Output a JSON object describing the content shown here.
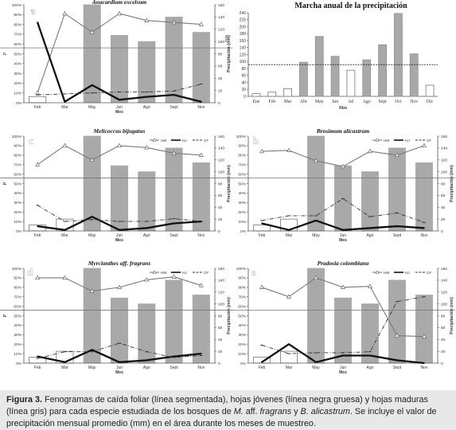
{
  "figure": {
    "months": [
      "Feb",
      "Mar",
      "May",
      "Jun",
      "Ago",
      "Sept",
      "Nov"
    ],
    "x_label": "Mes",
    "left_ticks": [
      "0%",
      "10%",
      "20%",
      "30%",
      "40%",
      "50%",
      "60%",
      "70%",
      "80%",
      "90%",
      "100%"
    ],
    "left_axis_label": "P",
    "right_axis_label": "Precipitación (mm)",
    "right_ticks": [
      "0",
      "20",
      "40",
      "60",
      "80",
      "100",
      "120",
      "140",
      "160"
    ],
    "legend_labels": [
      "HM",
      "HJ",
      "CF"
    ]
  },
  "chart_data": [
    {
      "type": "line",
      "panel_letter": "a",
      "title": "Anacardium excelsum",
      "categories": [
        "Feb",
        "Mar",
        "May",
        "Jun",
        "Ago",
        "Sept",
        "Nov"
      ],
      "precipitation_bars": [
        10,
        0,
        160,
        110,
        100,
        140,
        115
      ],
      "series": [
        {
          "name": "HM",
          "values": [
            10,
            91,
            72,
            91,
            84,
            82,
            80
          ]
        },
        {
          "name": "HJ",
          "values": [
            82,
            1,
            18,
            3,
            6,
            8,
            1
          ]
        },
        {
          "name": "CF",
          "values": [
            8,
            9,
            10,
            11,
            11,
            12,
            19
          ]
        }
      ],
      "ylim": [
        0,
        100
      ],
      "y2lim": [
        0,
        160
      ]
    },
    {
      "type": "bar",
      "title": "Marcha anual de la precipitación",
      "xlabel": "Mes",
      "ylabel": "mm",
      "categories": [
        "Ene",
        "Feb",
        "Mar",
        "Abr",
        "May",
        "Jun",
        "Jul",
        "Ago",
        "Sept",
        "Oct",
        "Nov",
        "Dic"
      ],
      "values": [
        8,
        12,
        22,
        98,
        172,
        115,
        75,
        105,
        148,
        238,
        122,
        32
      ],
      "ylim": [
        0,
        240
      ],
      "yticks": [
        "0",
        "20",
        "40",
        "60",
        "80",
        "100",
        "120",
        "140",
        "160",
        "180",
        "200",
        "220",
        "240"
      ],
      "mean_line": 91
    },
    {
      "type": "line",
      "panel_letter": "c",
      "title": "Melicoccus bijugatus",
      "categories": [
        "Feb",
        "Mar",
        "May",
        "Jun",
        "Ago",
        "Sept",
        "Nov"
      ],
      "precipitation_bars": [
        10,
        20,
        160,
        110,
        100,
        140,
        115
      ],
      "series": [
        {
          "name": "HM",
          "values": [
            70,
            90,
            75,
            90,
            88,
            82,
            80
          ]
        },
        {
          "name": "HJ",
          "values": [
            5,
            1,
            15,
            1,
            3,
            8,
            10
          ]
        },
        {
          "name": "CF",
          "values": [
            27,
            10,
            12,
            10,
            10,
            13,
            10
          ]
        }
      ],
      "ylim": [
        0,
        100
      ],
      "y2lim": [
        0,
        160
      ]
    },
    {
      "type": "line",
      "panel_letter": "b",
      "title": "Brosimum alicastrum",
      "categories": [
        "Feb",
        "Mar",
        "May",
        "Jun",
        "Ago",
        "Sept",
        "Nov"
      ],
      "precipitation_bars": [
        10,
        20,
        160,
        110,
        100,
        140,
        115
      ],
      "series": [
        {
          "name": "HM",
          "values": [
            84,
            85,
            74,
            68,
            84,
            80,
            90
          ]
        },
        {
          "name": "HJ",
          "values": [
            8,
            1,
            11,
            1,
            3,
            5,
            3
          ]
        },
        {
          "name": "CF",
          "values": [
            11,
            16,
            16,
            34,
            15,
            19,
            9
          ]
        }
      ],
      "ylim": [
        0,
        100
      ],
      "y2lim": [
        0,
        160
      ]
    },
    {
      "type": "line",
      "panel_letter": "d",
      "title": "Myrcianthes aff. fragrans",
      "categories": [
        "Feb",
        "Mar",
        "May",
        "Jun",
        "Ago",
        "Sept",
        "Nov"
      ],
      "precipitation_bars": [
        10,
        20,
        160,
        110,
        100,
        140,
        115
      ],
      "series": [
        {
          "name": "HM",
          "values": [
            90,
            90,
            76,
            80,
            88,
            91,
            82
          ]
        },
        {
          "name": "HJ",
          "values": [
            7,
            1,
            14,
            1,
            3,
            7,
            10
          ]
        },
        {
          "name": "CF",
          "values": [
            5,
            12,
            12,
            21,
            12,
            6,
            8
          ]
        }
      ],
      "ylim": [
        0,
        100
      ],
      "y2lim": [
        0,
        160
      ]
    },
    {
      "type": "line",
      "panel_letter": "e",
      "title": "Pradosia colombiana",
      "categories": [
        "Feb",
        "Mar",
        "May",
        "Jun",
        "Ago",
        "Sept",
        "Nov"
      ],
      "precipitation_bars": [
        10,
        20,
        160,
        110,
        100,
        140,
        115
      ],
      "series": [
        {
          "name": "HM",
          "values": [
            80,
            70,
            90,
            80,
            81,
            29,
            28
          ]
        },
        {
          "name": "HJ",
          "values": [
            1,
            20,
            1,
            8,
            8,
            3,
            0
          ]
        },
        {
          "name": "CF",
          "values": [
            19,
            10,
            11,
            11,
            12,
            65,
            70
          ]
        }
      ],
      "ylim": [
        0,
        100
      ],
      "y2lim": [
        0,
        160
      ]
    }
  ],
  "caption": {
    "label": "Figura 3.",
    "text_1": " Fenogramas de caída foliar (línea segmentada), hojas jóvenes (línea negra gruesa) y hojas maduras (línea gris) para cada especie estudiada de los bosques de ",
    "species_1": "M.",
    "text_2": " aff. ",
    "species_2": "fragrans",
    "text_3": " y ",
    "species_3": "B.  alicastrum",
    "text_4": ". Se incluye el valor de precipitación mensual promedio (mm) en el área durante los meses de muestreo."
  }
}
